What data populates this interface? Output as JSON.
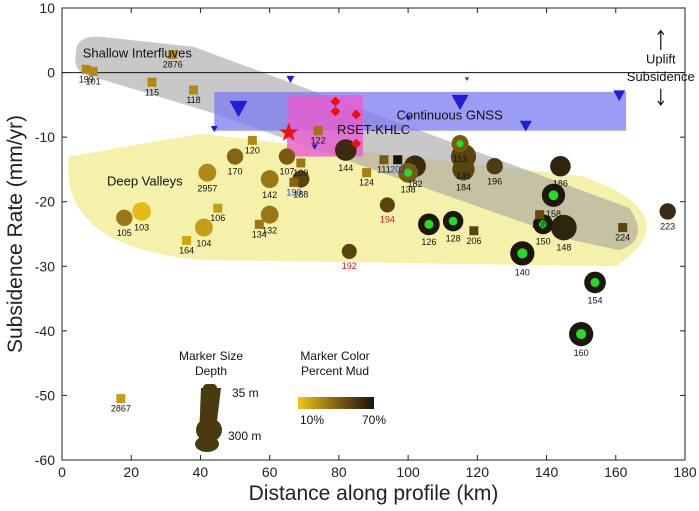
{
  "chart_data": {
    "type": "scatter",
    "xlabel": "Distance along profile (km)",
    "ylabel": "Subsidence Rate (mm/yr)",
    "xlim": [
      0,
      180
    ],
    "ylim": [
      -60,
      10
    ],
    "xticks": [
      "0",
      "20",
      "40",
      "60",
      "80",
      "100",
      "120",
      "140",
      "160",
      "180"
    ],
    "yticks": [
      "10",
      "0",
      "-10",
      "-20",
      "-30",
      "-40",
      "-50",
      "-60"
    ],
    "annotations": {
      "uplift": "Uplift",
      "subsidence": "Subsidence",
      "shallow": "Shallow Interfluves",
      "deep": "Deep Valleys",
      "gnss": "Continuous GNSS",
      "rset": "RSET-KHLC"
    },
    "legend": {
      "size_title": "Marker Size",
      "size_sub": "Depth",
      "size_small": "35 m",
      "size_large": "300 m",
      "color_title": "Marker Color",
      "color_sub": "Percent Mud",
      "color_min": "10%",
      "color_max": "70%"
    },
    "colors": {
      "mud_low": "#f0c419",
      "mud_high": "#1a1410",
      "gnss": "#1f1fd6",
      "rset": "#ee1111",
      "shallow_band": "#9a9a9a",
      "deep_band": "#f3ee9b",
      "gnss_box": "#7b7bf0",
      "rset_box": "#e85cd0",
      "highlight_dot": "#22dd22",
      "label_red": "#e01010",
      "label_blue": "#1a3cd6"
    },
    "points": [
      {
        "id": "199",
        "x": 7,
        "y": 0.5,
        "depth": 20,
        "mud": 0.3,
        "shape": "square"
      },
      {
        "id": "101",
        "x": 9,
        "y": 0.2,
        "depth": 20,
        "mud": 0.3,
        "shape": "square"
      },
      {
        "id": "115",
        "x": 26,
        "y": -1.5,
        "depth": 20,
        "mud": 0.3,
        "shape": "square"
      },
      {
        "id": "2876",
        "x": 32,
        "y": 2.8,
        "depth": 20,
        "mud": 0.3,
        "shape": "square"
      },
      {
        "id": "118",
        "x": 38,
        "y": -2.7,
        "depth": 20,
        "mud": 0.3,
        "shape": "square"
      },
      {
        "id": "120",
        "x": 55,
        "y": -10.5,
        "depth": 25,
        "mud": 0.3,
        "shape": "square"
      },
      {
        "id": "107",
        "x": 65,
        "y": -13,
        "depth": 70,
        "mud": 0.55
      },
      {
        "id": "122",
        "x": 74,
        "y": -9,
        "depth": 25,
        "mud": 0.4,
        "shape": "square"
      },
      {
        "id": "190",
        "x": 67,
        "y": -17,
        "depth": 20,
        "mud": 0.5,
        "label_color": "blue",
        "shape": "square"
      },
      {
        "id": "109",
        "x": 69,
        "y": -14,
        "depth": 25,
        "mud": 0.4,
        "shape": "square"
      },
      {
        "id": "188",
        "x": 69,
        "y": -16.5,
        "depth": 80,
        "mud": 0.7
      },
      {
        "id": "144",
        "x": 82,
        "y": -12,
        "depth": 150,
        "mud": 0.85
      },
      {
        "id": "124",
        "x": 88,
        "y": -15.5,
        "depth": 25,
        "mud": 0.35,
        "shape": "square"
      },
      {
        "id": "111",
        "x": 93,
        "y": -13.5,
        "depth": 25,
        "mud": 0.55,
        "shape": "square"
      },
      {
        "id": "202",
        "x": 97,
        "y": -13.5,
        "depth": 25,
        "mud": 1.0,
        "label_color": "blue",
        "shape": "square"
      },
      {
        "id": "194",
        "x": 94,
        "y": -20.5,
        "depth": 55,
        "mud": 0.7,
        "label_color": "red"
      },
      {
        "id": "192",
        "x": 83,
        "y": -27.7,
        "depth": 55,
        "mud": 0.7,
        "label_color": "red"
      },
      {
        "id": "138",
        "x": 100,
        "y": -15.5,
        "depth": 120,
        "mud": 0.55,
        "highlight": true
      },
      {
        "id": "182",
        "x": 102,
        "y": -14.5,
        "depth": 150,
        "mud": 0.85
      },
      {
        "id": "126",
        "x": 106,
        "y": -23.5,
        "depth": 150,
        "mud": 0.98,
        "highlight": true
      },
      {
        "id": "128",
        "x": 113,
        "y": -23,
        "depth": 130,
        "mud": 0.98,
        "highlight": true
      },
      {
        "id": "113",
        "x": 115,
        "y": -11,
        "depth": 80,
        "mud": 0.55,
        "highlight": true
      },
      {
        "id": "146",
        "x": 116,
        "y": -13,
        "depth": 220,
        "mud": 0.7
      },
      {
        "id": "184",
        "x": 116,
        "y": -15,
        "depth": 160,
        "mud": 0.7
      },
      {
        "id": "206",
        "x": 119,
        "y": -24.5,
        "depth": 25,
        "mud": 0.7,
        "shape": "square"
      },
      {
        "id": "196",
        "x": 125,
        "y": -14.5,
        "depth": 70,
        "mud": 0.75
      },
      {
        "id": "140",
        "x": 133,
        "y": -28,
        "depth": 200,
        "mud": 0.98,
        "highlight": true
      },
      {
        "id": "208",
        "x": 138,
        "y": -22,
        "depth": 25,
        "mud": 0.65,
        "shape": "square"
      },
      {
        "id": "150",
        "x": 139,
        "y": -23.5,
        "depth": 120,
        "mud": 0.98,
        "highlight": true
      },
      {
        "id": "158",
        "x": 142,
        "y": -19,
        "depth": 180,
        "mud": 0.98,
        "highlight": true
      },
      {
        "id": "186",
        "x": 144,
        "y": -14.5,
        "depth": 130,
        "mud": 0.9
      },
      {
        "id": "148",
        "x": 145,
        "y": -24,
        "depth": 230,
        "mud": 0.9
      },
      {
        "id": "154",
        "x": 154,
        "y": -32.5,
        "depth": 150,
        "mud": 0.98,
        "highlight": true
      },
      {
        "id": "160",
        "x": 150,
        "y": -40.5,
        "depth": 200,
        "mud": 0.98,
        "highlight": true
      },
      {
        "id": "224",
        "x": 162,
        "y": -24,
        "depth": 25,
        "mud": 0.7,
        "shape": "square"
      },
      {
        "id": "223",
        "x": 175,
        "y": -21.5,
        "depth": 70,
        "mud": 0.85
      },
      {
        "id": "2957",
        "x": 42,
        "y": -15.5,
        "depth": 90,
        "mud": 0.3
      },
      {
        "id": "170",
        "x": 50,
        "y": -13,
        "depth": 70,
        "mud": 0.5
      },
      {
        "id": "142",
        "x": 60,
        "y": -16.5,
        "depth": 90,
        "mud": 0.4
      },
      {
        "id": "105",
        "x": 18,
        "y": -22.5,
        "depth": 70,
        "mud": 0.4
      },
      {
        "id": "103",
        "x": 23,
        "y": -21.5,
        "depth": 100,
        "mud": 0.05
      },
      {
        "id": "106",
        "x": 45,
        "y": -21,
        "depth": 25,
        "mud": 0.2,
        "shape": "square"
      },
      {
        "id": "104",
        "x": 41,
        "y": -24,
        "depth": 90,
        "mud": 0.2
      },
      {
        "id": "164",
        "x": 36,
        "y": -26,
        "depth": 25,
        "mud": 0.15,
        "shape": "square"
      },
      {
        "id": "134",
        "x": 57,
        "y": -23.5,
        "depth": 25,
        "mud": 0.4,
        "shape": "square"
      },
      {
        "id": "132",
        "x": 60,
        "y": -22,
        "depth": 90,
        "mud": 0.4
      },
      {
        "id": "2867",
        "x": 17,
        "y": -50.5,
        "depth": 25,
        "mud": 0.2,
        "shape": "square"
      }
    ],
    "gnss_points": [
      {
        "x": 51,
        "y": -5.5,
        "size": 18
      },
      {
        "x": 44,
        "y": -8.7,
        "size": 7
      },
      {
        "x": 66,
        "y": -1,
        "size": 8
      },
      {
        "x": 73,
        "y": -11.5,
        "size": 6
      },
      {
        "x": 100,
        "y": -7,
        "size": 6
      },
      {
        "x": 115,
        "y": -4.5,
        "size": 17
      },
      {
        "x": 117,
        "y": -1,
        "size": 4
      },
      {
        "x": 134,
        "y": -8.2,
        "size": 12
      },
      {
        "x": 161,
        "y": -3.5,
        "size": 12
      }
    ],
    "rset_points": [
      {
        "x": 79,
        "y": -4.5
      },
      {
        "x": 79,
        "y": -6
      },
      {
        "x": 85,
        "y": -6.5
      },
      {
        "x": 85,
        "y": -11
      }
    ],
    "rset_star": {
      "x": 65.5,
      "y": -9.3
    }
  }
}
